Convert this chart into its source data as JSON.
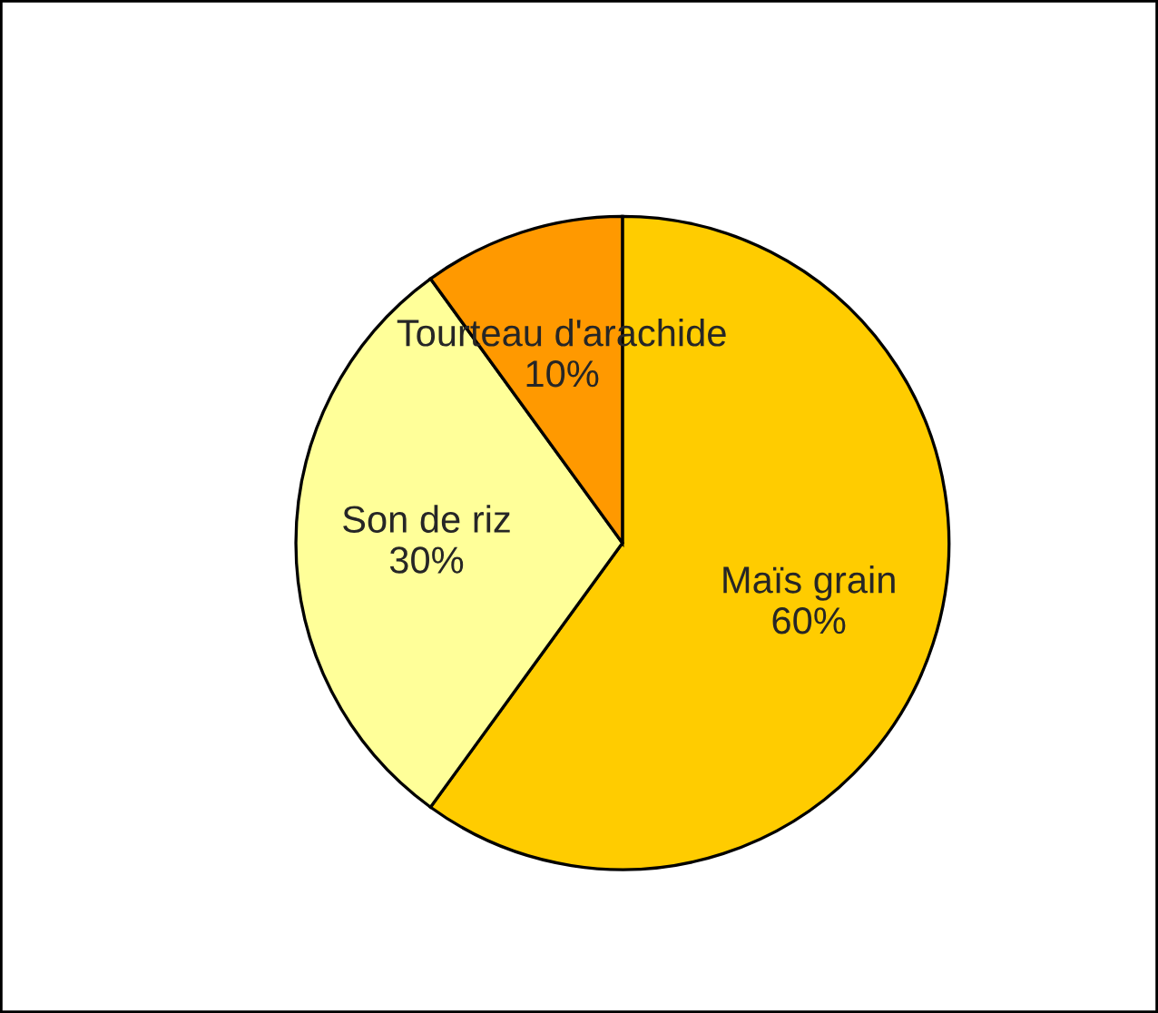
{
  "chart_data": {
    "type": "pie",
    "categories": [
      "Maïs grain",
      "Son de riz",
      "Tourteau d'arachide"
    ],
    "values": [
      60,
      30,
      10
    ],
    "value_labels": [
      "60%",
      "30%",
      "10%"
    ],
    "colors": [
      "#ffcc00",
      "#ffff99",
      "#ff9900"
    ]
  }
}
